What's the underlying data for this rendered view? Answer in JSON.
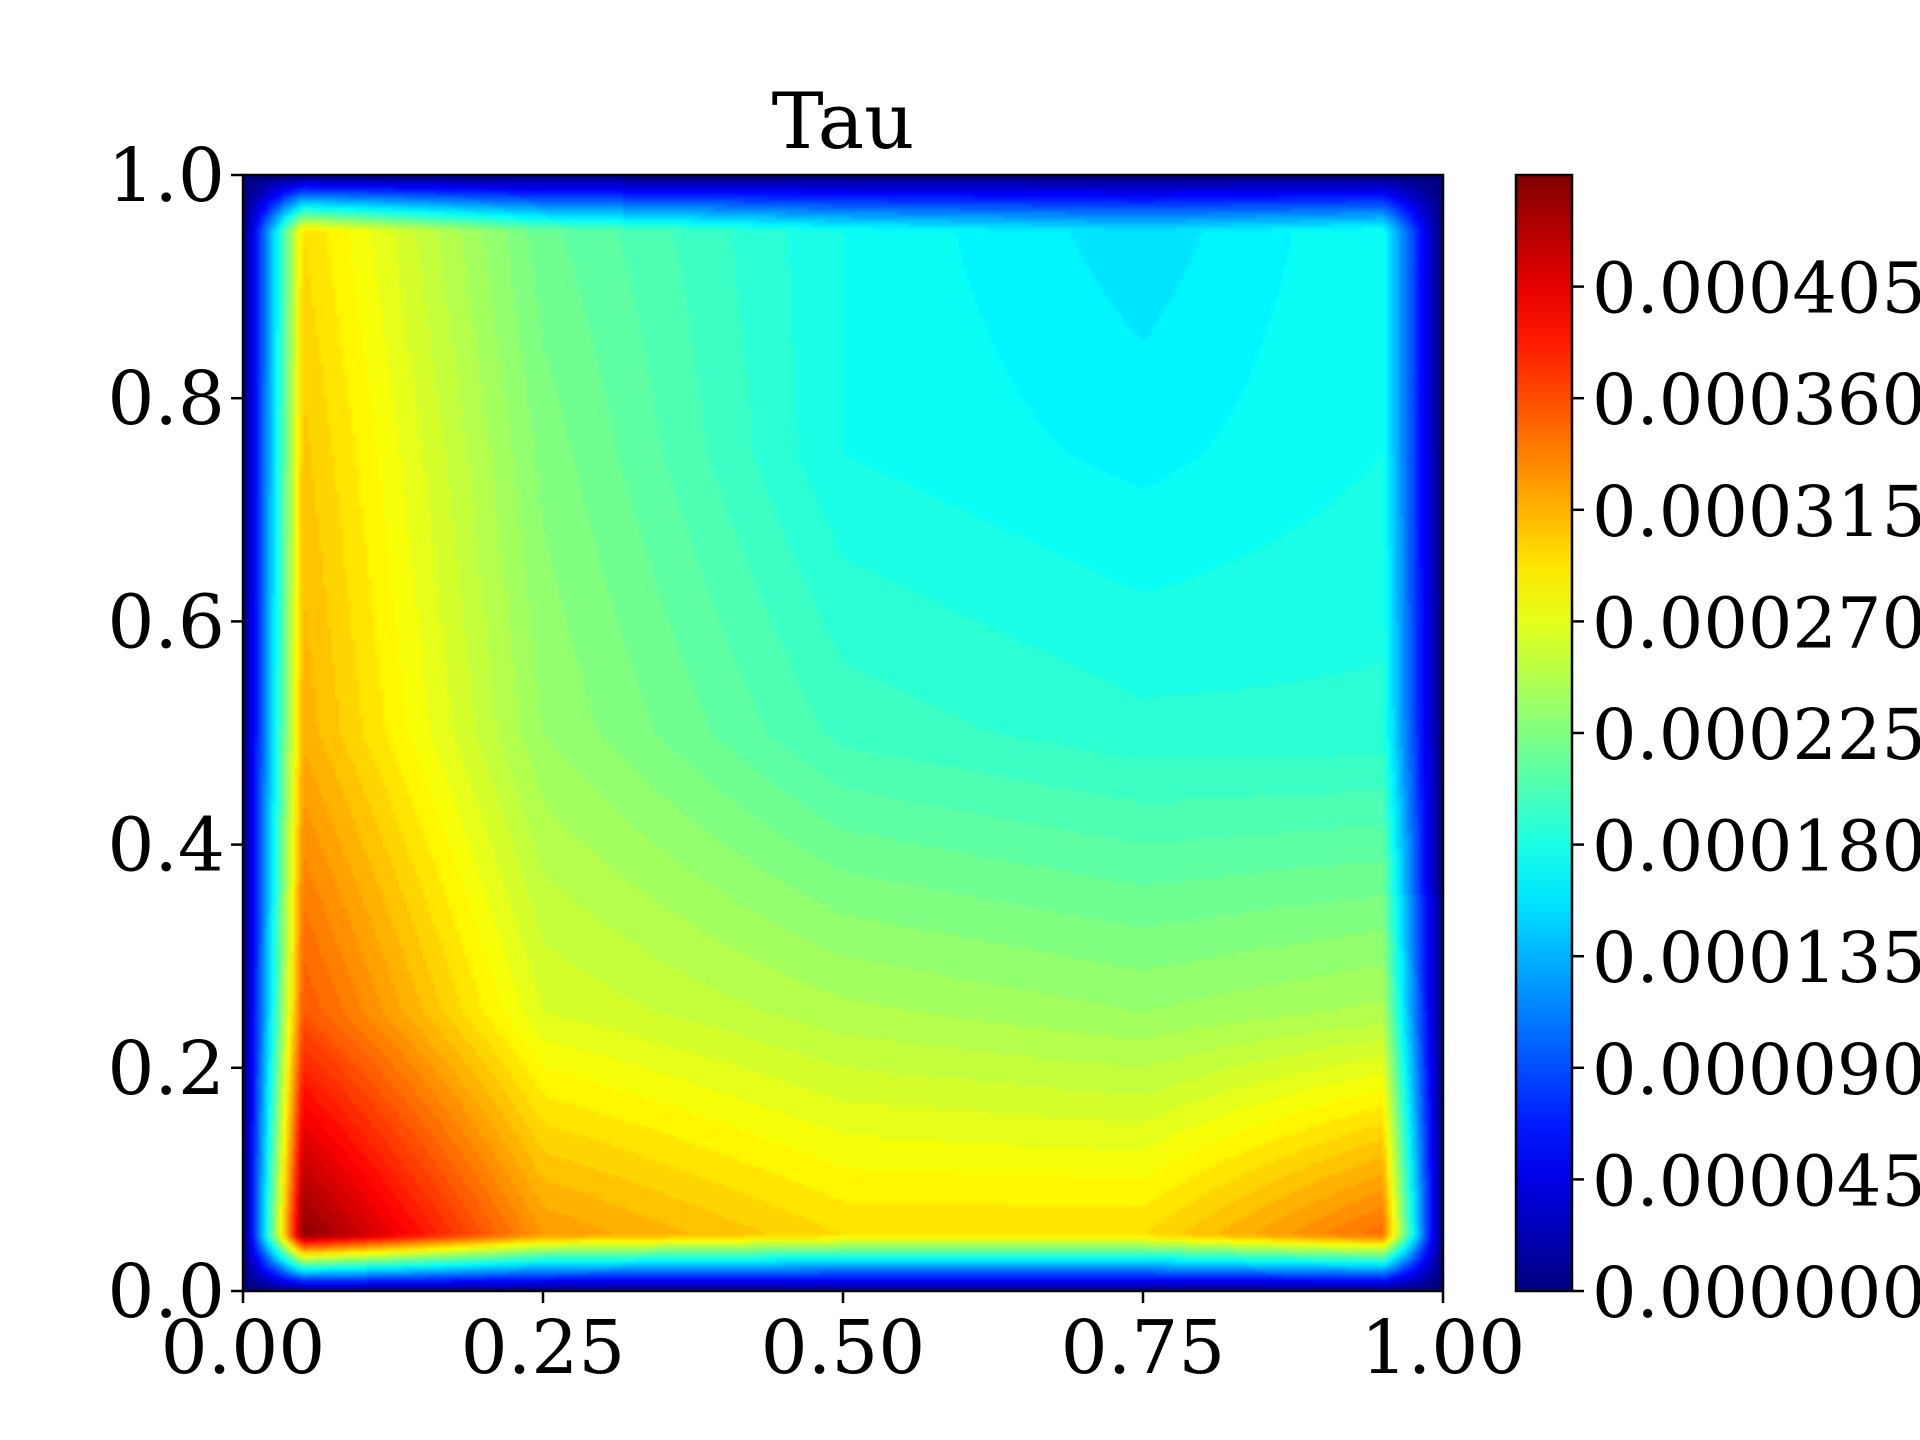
{
  "chart_data": {
    "type": "heatmap",
    "title": "Tau",
    "xlabel": "",
    "ylabel": "",
    "xlim": [
      0.0,
      1.0
    ],
    "ylim": [
      0.0,
      1.0
    ],
    "x_ticks": [
      "0.00",
      "0.25",
      "0.50",
      "0.75",
      "1.00"
    ],
    "y_ticks": [
      "0.0",
      "0.2",
      "0.4",
      "0.6",
      "0.8",
      "1.0"
    ],
    "x_tick_values": [
      0.0,
      0.25,
      0.5,
      0.75,
      1.0
    ],
    "y_tick_values": [
      0.0,
      0.2,
      0.4,
      0.6,
      0.8,
      1.0
    ],
    "colormap": "jet",
    "grid": false,
    "colorbar": {
      "vmin": 0.0,
      "vmax": 0.00045,
      "tick_values": [
        0.0,
        4.5e-05,
        9e-05,
        0.000135,
        0.00018,
        0.000225,
        0.00027,
        0.000315,
        0.00036,
        0.000405
      ],
      "tick_labels": [
        "0.000000",
        "0.000045",
        "0.000090",
        "0.000135",
        "0.000180",
        "0.000225",
        "0.000270",
        "0.000315",
        "0.000360",
        "0.000405"
      ]
    },
    "field_samples": {
      "x": [
        0.0,
        0.05,
        0.25,
        0.5,
        0.75,
        0.95,
        1.0
      ],
      "y": [
        0.0,
        0.05,
        0.25,
        0.5,
        0.75,
        0.95,
        1.0
      ],
      "values": [
        [
          0.0,
          0.0,
          0.0,
          0.0,
          0.0,
          0.0,
          0.0
        ],
        [
          0.0,
          0.00045,
          0.00033,
          0.0003,
          0.0003,
          0.00035,
          0.0
        ],
        [
          0.0,
          0.00036,
          0.00027,
          0.00025,
          0.00024,
          0.00025,
          0.0
        ],
        [
          0.0,
          0.00032,
          0.00024,
          0.0002,
          0.00019,
          0.00019,
          0.0
        ],
        [
          0.0,
          0.00031,
          0.00023,
          0.00018,
          0.00017,
          0.00018,
          0.0
        ],
        [
          0.0,
          0.0003,
          0.00022,
          0.00018,
          0.00016,
          0.00018,
          0.0
        ],
        [
          0.0,
          0.0,
          0.0,
          0.0,
          0.0,
          0.0,
          0.0
        ]
      ]
    }
  }
}
